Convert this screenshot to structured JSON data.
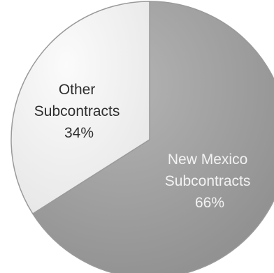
{
  "chart_data": {
    "type": "pie",
    "slices": [
      {
        "name": "New Mexico Subcontracts",
        "label_lines": [
          "New Mexico",
          "Subcontracts",
          "66%"
        ],
        "value": 66,
        "color": "#a8a8a8"
      },
      {
        "name": "Other Subcontracts",
        "label_lines": [
          "Other",
          "Subcontracts",
          "34%"
        ],
        "value": 34,
        "color": "#f3f3f3"
      }
    ],
    "start_angle_deg": 0,
    "direction": "clockwise",
    "legend": "none",
    "labels": "inside"
  }
}
